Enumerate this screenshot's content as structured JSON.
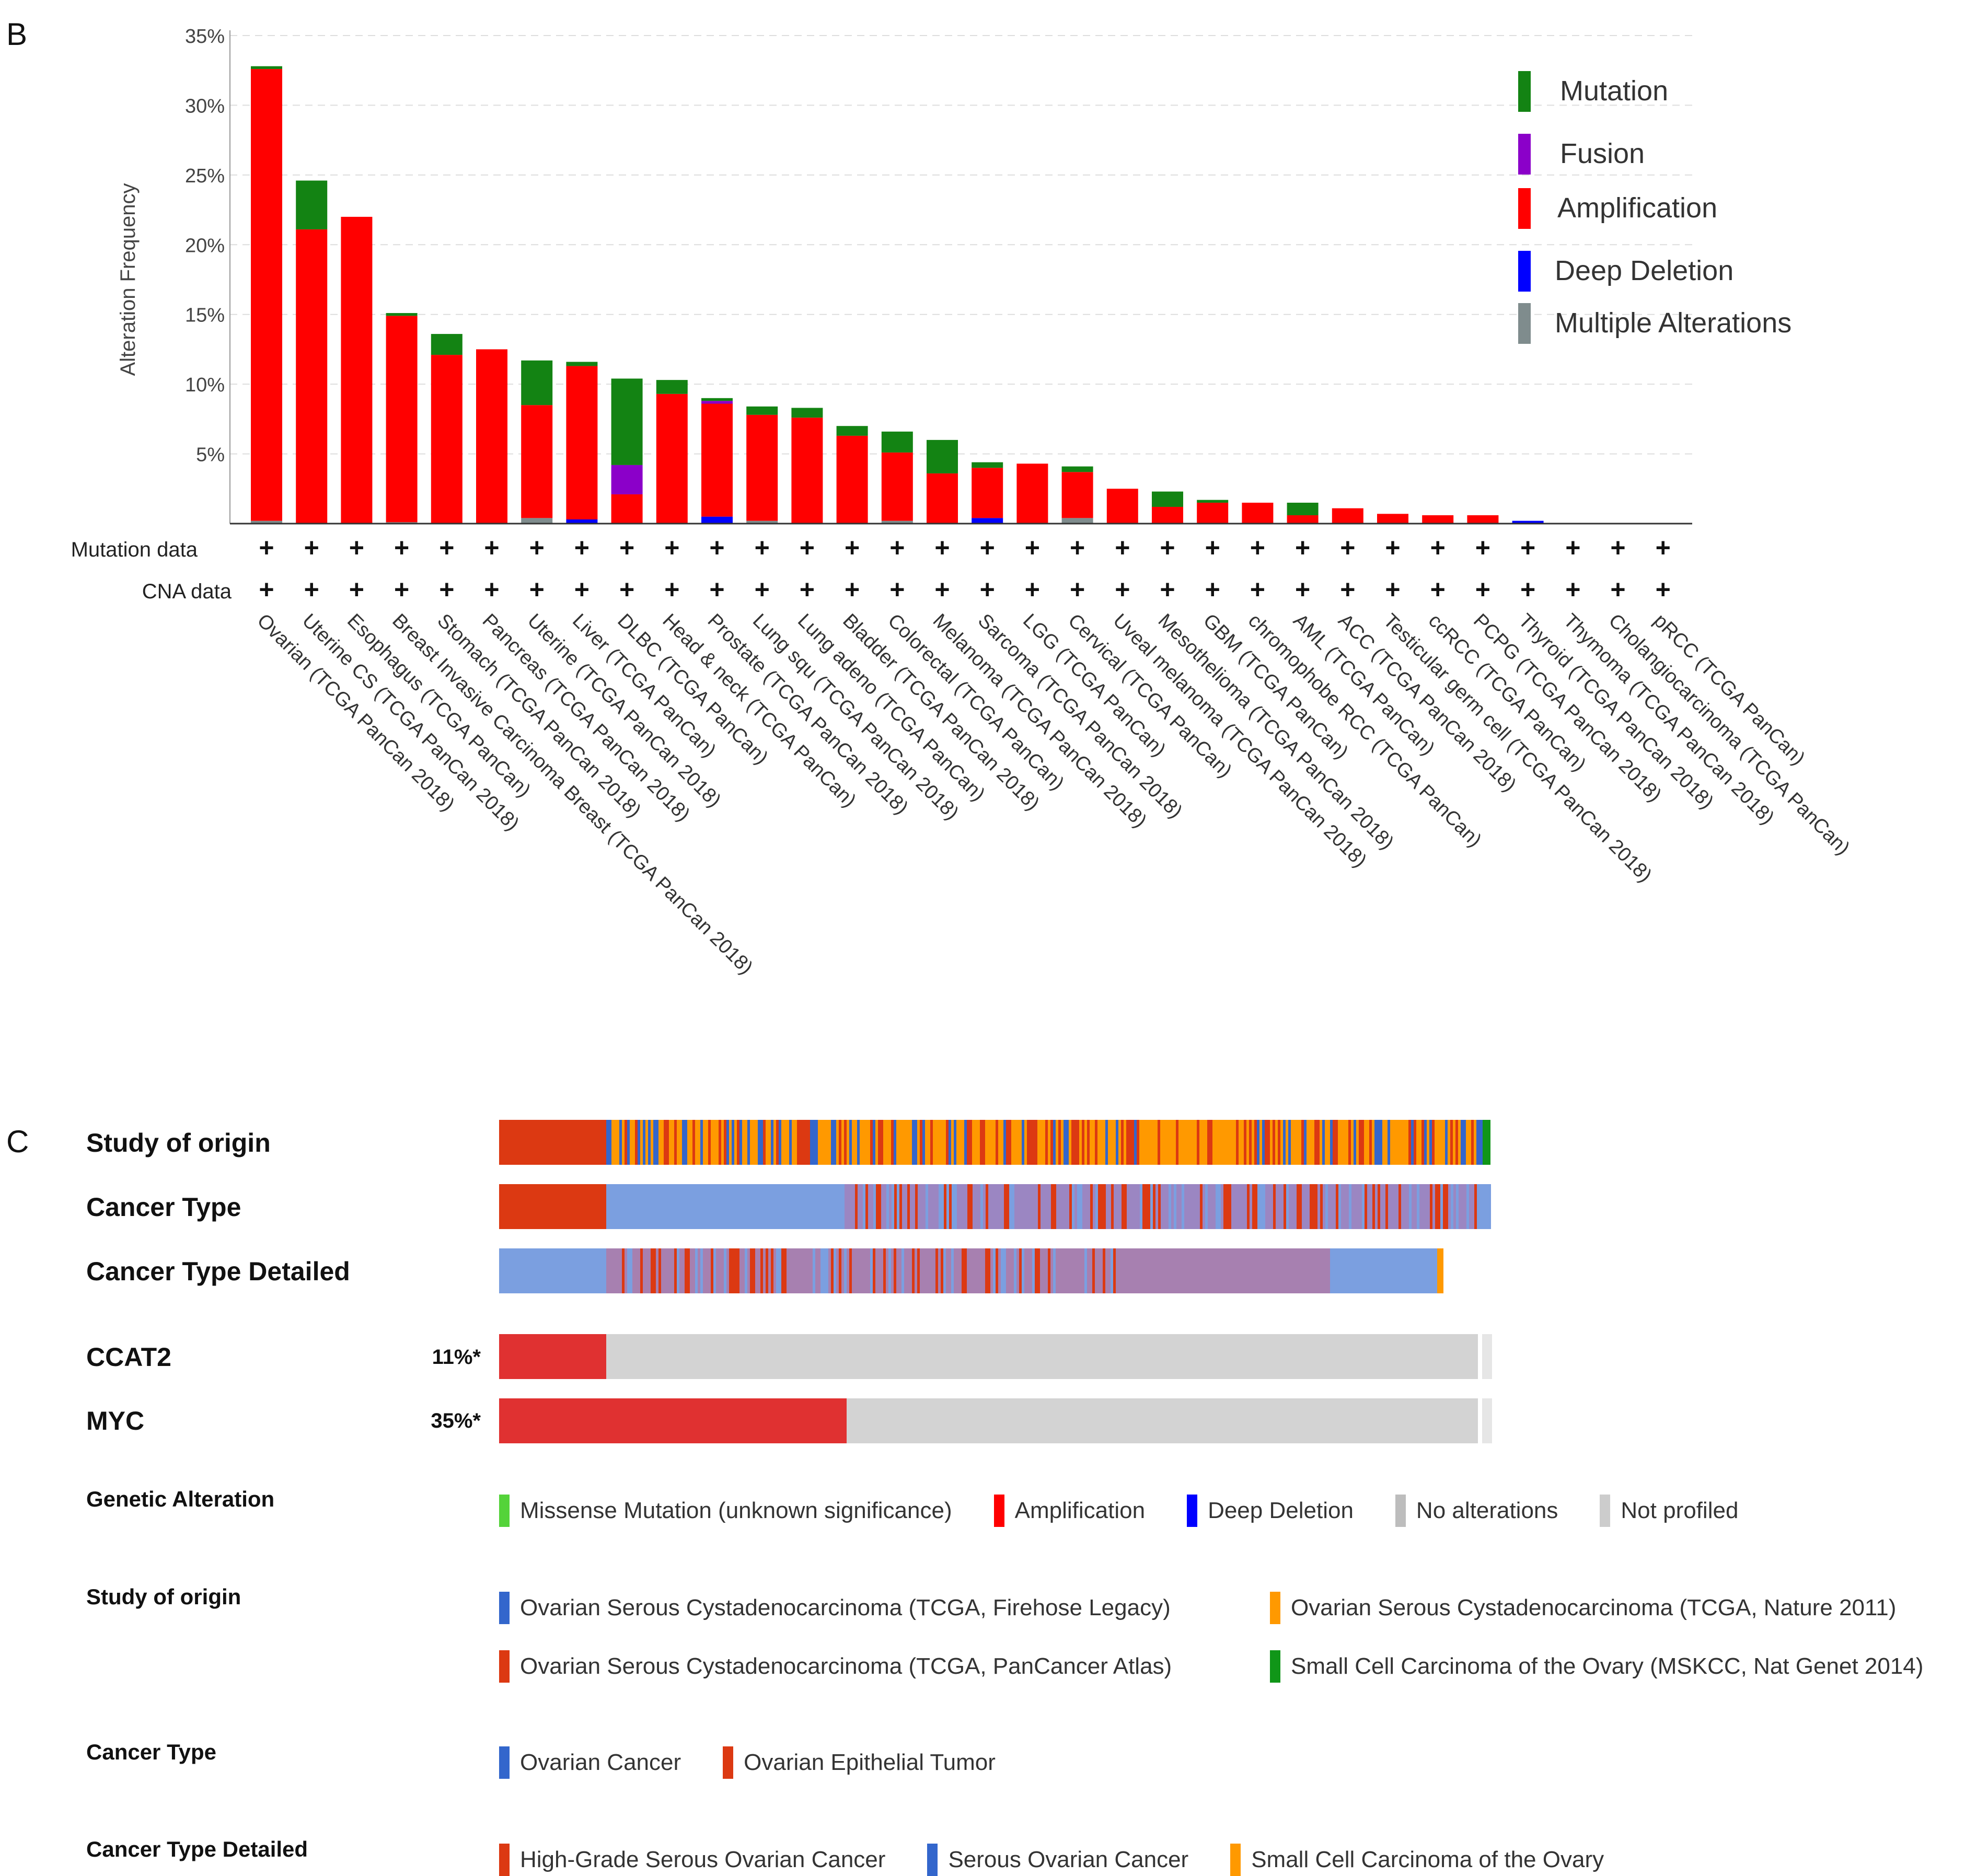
{
  "panel_b": {
    "letter": "B",
    "mutation_row_label": "Mutation data",
    "cna_row_label": "CNA data",
    "plus": "+",
    "legend": [
      {
        "label": "Mutation",
        "color": "#138313"
      },
      {
        "label": "Fusion",
        "color": "#8b00c9"
      },
      {
        "label": "Amplification",
        "color": "#ff0000"
      },
      {
        "label": "Deep Deletion",
        "color": "#0000ff"
      },
      {
        "label": "Multiple Alterations",
        "color": "#7f8c8d"
      }
    ]
  },
  "chart_data": {
    "type": "bar",
    "stacked": true,
    "ylabel": "Alteration Frequency",
    "ylim": [
      0,
      35
    ],
    "yticks": [
      "5%",
      "10%",
      "15%",
      "20%",
      "25%",
      "30%",
      "35%"
    ],
    "grid": true,
    "legend_position": "top-right",
    "categories": [
      "Ovarian (TCGA PanCan 2018)",
      "Uterine CS (TCGA PanCan 2018)",
      "Esophagus (TCGA PanCan)",
      "Breast Invasive Carcinoma Breast (TCGA PanCan 2018)",
      "Stomach (TCGA PanCan 2018)",
      "Pancreas (TCGA PanCan 2018)",
      "Uterine (TCGA PanCan 2018)",
      "Liver (TCGA PanCan)",
      "DLBC (TCGA PanCan)",
      "Head & neck (TCGA PanCan)",
      "Prostate (TCGA PanCan 2018)",
      "Lung squ (TCGA PanCan 2018)",
      "Lung adeno (TCGA PanCan)",
      "Bladder (TCGA PanCan 2018)",
      "Colorectal (TCGA PanCan)",
      "Melanoma (TCGA PanCan 2018)",
      "Sarcoma (TCGA PanCan 2018)",
      "LGG (TCGA PanCan)",
      "Cervical (TCGA PanCan)",
      "Uveal melanoma (TCGA PanCan 2018)",
      "Mesothelioma (TCGA PanCan 2018)",
      "GBM (TCGA PanCan)",
      "chromophobe RCC (TCGA PanCan)",
      "AML (TCGA PanCan)",
      "ACC (TCGA PanCan 2018)",
      "Testicular germ cell (TCGA PanCan 2018)",
      "ccRCC (TCGA PanCan)",
      "PCPG (TCGA PanCan 2018)",
      "Thyroid (TCGA PanCan 2018)",
      "Thymoma (TCGA PanCan 2018)",
      "Cholangiocarcinoma (TCGA PanCan)",
      "pRCC (TCGA PanCan)"
    ],
    "series": [
      {
        "name": "Multiple Alterations",
        "color": "#7f8c8d",
        "values": [
          0.2,
          0,
          0,
          0.1,
          0,
          0,
          0.4,
          0,
          0,
          0,
          0,
          0.2,
          0,
          0,
          0.2,
          0,
          0,
          0,
          0.4,
          0,
          0,
          0,
          0,
          0,
          0,
          0,
          0,
          0,
          0,
          0,
          0,
          0
        ]
      },
      {
        "name": "Deep Deletion",
        "color": "#0000ff",
        "values": [
          0,
          0,
          0,
          0,
          0,
          0,
          0,
          0.3,
          0,
          0,
          0.5,
          0,
          0,
          0,
          0,
          0,
          0.4,
          0,
          0,
          0,
          0,
          0,
          0,
          0,
          0,
          0,
          0,
          0,
          0.2,
          0,
          0,
          0
        ]
      },
      {
        "name": "Amplification",
        "color": "#ff0000",
        "values": [
          32.4,
          21.1,
          22.0,
          14.8,
          12.1,
          12.5,
          8.1,
          11.0,
          2.1,
          9.3,
          8.1,
          7.6,
          7.6,
          6.3,
          4.9,
          3.6,
          3.6,
          4.3,
          3.3,
          2.5,
          1.2,
          1.5,
          1.5,
          0.6,
          1.1,
          0.7,
          0.6,
          0.6,
          0,
          0,
          0,
          0
        ]
      },
      {
        "name": "Fusion",
        "color": "#8b00c9",
        "values": [
          0,
          0,
          0,
          0,
          0,
          0,
          0,
          0,
          2.1,
          0,
          0.2,
          0,
          0,
          0,
          0,
          0,
          0,
          0,
          0,
          0,
          0,
          0,
          0,
          0,
          0,
          0,
          0,
          0,
          0,
          0,
          0,
          0
        ]
      },
      {
        "name": "Mutation",
        "color": "#138313",
        "values": [
          0.2,
          3.5,
          0,
          0.2,
          1.5,
          0,
          3.2,
          0.3,
          6.2,
          1.0,
          0.2,
          0.6,
          0.7,
          0.7,
          1.5,
          2.4,
          0.4,
          0,
          0.4,
          0,
          1.1,
          0.2,
          0,
          0.9,
          0,
          0,
          0,
          0,
          0,
          0,
          0,
          0
        ]
      }
    ]
  },
  "panel_c": {
    "letter": "C",
    "tracks": [
      {
        "label": "Study of origin"
      },
      {
        "label": "Cancer Type"
      },
      {
        "label": "Cancer Type Detailed"
      }
    ],
    "genes": [
      {
        "name": "CCAT2",
        "pct": "11%*",
        "altered_fraction": 0.108
      },
      {
        "name": "MYC",
        "pct": "35%*",
        "altered_fraction": 0.35
      }
    ],
    "colors": {
      "panatlas": "#dc3912",
      "firehose": "#3366cc",
      "nature": "#ff9900",
      "mskcc": "#109618",
      "amp": "#e03131",
      "none": "#d3d3d3"
    },
    "legends": [
      {
        "title": "Genetic Alteration",
        "rows": [
          [
            {
              "label": "Missense Mutation (unknown significance)",
              "color": "#54d33a"
            },
            {
              "label": "Amplification",
              "color": "#ff0000"
            },
            {
              "label": "Deep Deletion",
              "color": "#0000ff"
            },
            {
              "label": "No alterations",
              "color": "#bdbdbd"
            },
            {
              "label": "Not profiled",
              "color": "#cccccc"
            }
          ]
        ]
      },
      {
        "title": "Study of origin",
        "rows": [
          [
            {
              "label": "Ovarian Serous Cystadenocarcinoma (TCGA, Firehose Legacy)",
              "color": "#3366cc"
            },
            {
              "label": "Ovarian Serous Cystadenocarcinoma (TCGA, Nature 2011)",
              "color": "#ff9900"
            }
          ],
          [
            {
              "label": "Ovarian Serous Cystadenocarcinoma (TCGA, PanCancer Atlas)",
              "color": "#dc3912"
            },
            {
              "label": "Small Cell Carcinoma of the Ovary (MSKCC, Nat Genet 2014)",
              "color": "#109618"
            }
          ]
        ]
      },
      {
        "title": "Cancer Type",
        "rows": [
          [
            {
              "label": "Ovarian Cancer",
              "color": "#3366cc"
            },
            {
              "label": "Ovarian Epithelial Tumor",
              "color": "#dc3912"
            }
          ]
        ]
      },
      {
        "title": "Cancer Type Detailed",
        "rows": [
          [
            {
              "label": "High-Grade Serous Ovarian Cancer",
              "color": "#dc3912"
            },
            {
              "label": "Serous Ovarian Cancer",
              "color": "#3366cc"
            },
            {
              "label": "Small Cell Carcinoma of the Ovary",
              "color": "#ff9900"
            }
          ]
        ]
      }
    ]
  }
}
